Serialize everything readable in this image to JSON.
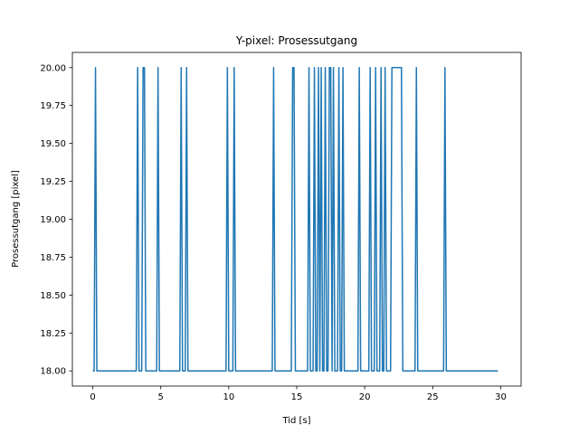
{
  "chart_data": {
    "type": "line",
    "title": "Y-pixel: Prosessutgang",
    "xlabel": "Tid [s]",
    "ylabel": "Prosessutgang [pixel]",
    "xlim": [
      -1.5,
      31.5
    ],
    "ylim": [
      17.9,
      20.1
    ],
    "xticks": [
      0,
      5,
      10,
      15,
      20,
      25,
      30
    ],
    "xtick_labels": [
      "0",
      "5",
      "10",
      "15",
      "20",
      "25",
      "30"
    ],
    "yticks": [
      18.0,
      18.25,
      18.5,
      18.75,
      19.0,
      19.25,
      19.5,
      19.75,
      20.0
    ],
    "ytick_labels": [
      "18.00",
      "18.25",
      "18.50",
      "18.75",
      "19.00",
      "19.25",
      "19.50",
      "19.75",
      "20.00"
    ],
    "grid": false,
    "line_color": "#1f77b4",
    "series": [
      {
        "name": "",
        "step_width": 0.1,
        "x_start": 0.0,
        "x_end": 29.8,
        "baseline": 18.0,
        "high": 20.0,
        "spikes": [
          0.2,
          3.3,
          3.7,
          3.8,
          4.8,
          6.5,
          6.9,
          9.9,
          10.4,
          13.3,
          14.7,
          14.8,
          15.9,
          16.3,
          16.6,
          16.8,
          17.1,
          17.4,
          17.5,
          17.7,
          18.1,
          18.4,
          19.6,
          20.4,
          20.8,
          21.2,
          21.5,
          23.8,
          25.9
        ],
        "plateaus": [
          [
            22.0,
            22.7
          ]
        ]
      }
    ]
  }
}
